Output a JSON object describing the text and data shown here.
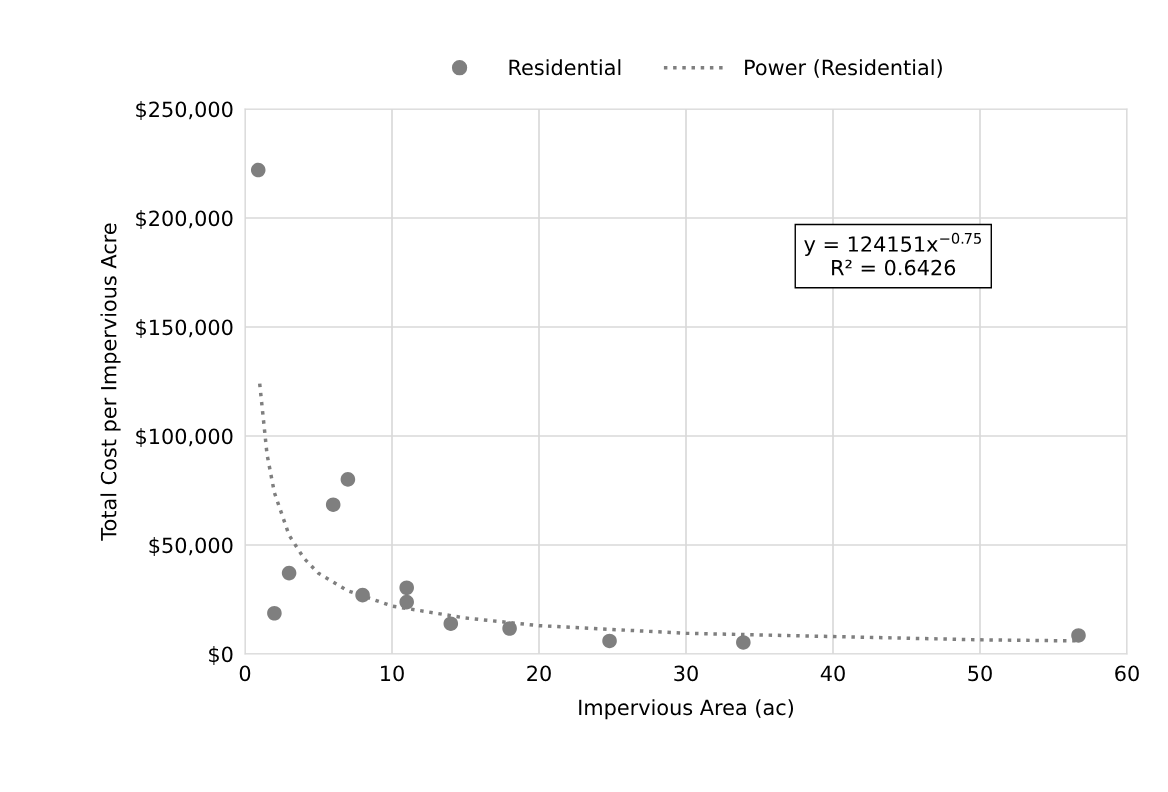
{
  "chart_data": {
    "type": "scatter",
    "xlabel": "Impervious Area (ac)",
    "ylabel": "Total Cost per Impervious Acre",
    "series": [
      {
        "name": "Residential",
        "color": "#7f7f7f",
        "marker": "circle",
        "x": [
          0.9,
          2,
          3,
          6,
          7,
          8,
          11,
          11,
          14,
          18,
          24.8,
          33.9,
          56.7
        ],
        "values": [
          222000,
          18700,
          37100,
          68500,
          80100,
          27000,
          30400,
          23800,
          13900,
          11700,
          6000,
          5300,
          8500
        ]
      },
      {
        "name": "Power (Residential)",
        "type": "line",
        "color": "#7f7f7f",
        "marker": "none",
        "line_style": "dotted",
        "x": [
          1,
          1.5,
          2,
          3,
          4,
          5,
          7,
          10,
          15,
          20,
          30,
          40,
          50,
          56.7
        ],
        "values": [
          124000,
          91500,
          74000,
          54500,
          44000,
          37000,
          29000,
          22000,
          16500,
          13000,
          9500,
          8000,
          6500,
          6000
        ]
      }
    ],
    "xlim": [
      0,
      60
    ],
    "xticks": [
      0,
      10,
      20,
      30,
      40,
      50,
      60
    ],
    "ylim": [
      0,
      250000
    ],
    "yticks": [
      {
        "value": 0,
        "label": "$0"
      },
      {
        "value": 50000,
        "label": "$50,000"
      },
      {
        "value": 100000,
        "label": "$100,000"
      },
      {
        "value": 150000,
        "label": "$150,000"
      },
      {
        "value": 200000,
        "label": "$200,000"
      },
      {
        "value": 250000,
        "label": "$250,000"
      }
    ],
    "grid": true,
    "legend": "top",
    "annotations": [
      "y = 124151x$^{−0.75}$\nR² = 0.6426"
    ]
  }
}
